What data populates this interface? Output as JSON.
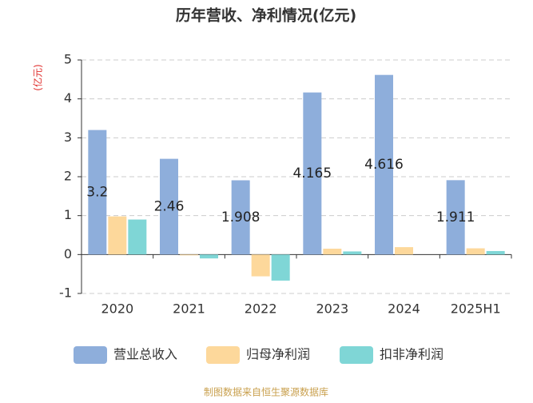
{
  "chart_data": {
    "type": "bar",
    "title": "历年营收、净利情况(亿元)",
    "y_label": "(亿元)",
    "categories": [
      "2020",
      "2021",
      "2022",
      "2023",
      "2024",
      "2025H1"
    ],
    "series": [
      {
        "name": "营业总收入",
        "color": "#8eaedb",
        "values": [
          3.2,
          2.46,
          1.908,
          4.165,
          4.616,
          1.911
        ],
        "show_labels": true
      },
      {
        "name": "归母净利润",
        "color": "#fdd89b",
        "values": [
          0.98,
          -0.02,
          -0.56,
          0.15,
          0.19,
          0.16
        ]
      },
      {
        "name": "扣非净利润",
        "color": "#7fd6d6",
        "values": [
          0.9,
          -0.1,
          -0.67,
          0.08,
          null,
          0.09
        ]
      }
    ],
    "ylim": [
      -1,
      5
    ],
    "yticks": [
      -1,
      0,
      1,
      2,
      3,
      4,
      5
    ],
    "grid": true,
    "source": "制图数据来自恒生聚源数据库"
  }
}
